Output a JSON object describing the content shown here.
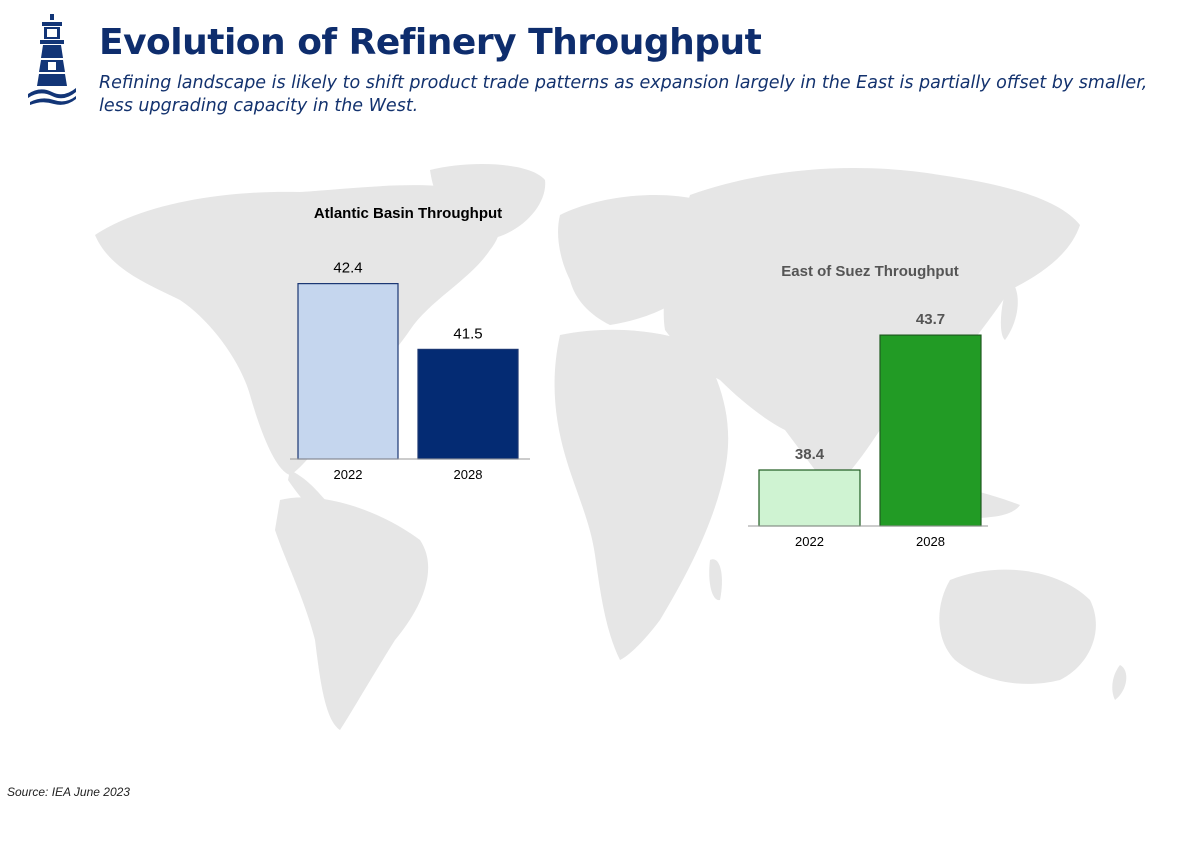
{
  "header": {
    "title": "Evolution of Refinery Throughput",
    "subtitle": "Refining landscape is likely to shift product trade patterns as expansion largely in the East is partially offset by smaller, less upgrading capacity in the West.",
    "logo_icon": "lighthouse-icon"
  },
  "footer": {
    "source": "Source: IEA June 2023"
  },
  "colors": {
    "title": "#0e2d6d",
    "map_land": "#e6e6e6",
    "atlantic_2022": "#c5d6ee",
    "atlantic_2028": "#042b73",
    "suez_2022": "#cff3d2",
    "suez_2028": "#229b25",
    "bar_outline_atlantic": "#1a3672",
    "bar_outline_suez": "#1e5a20",
    "suez_text": "#555555"
  },
  "chart_data": [
    {
      "type": "bar",
      "title": "Atlantic Basin Throughput",
      "categories": [
        "2022",
        "2028"
      ],
      "values": [
        42.4,
        41.5
      ],
      "value_labels": [
        "42.4",
        "41.5"
      ],
      "ylim": [
        40,
        42.6
      ],
      "colors": [
        "#c5d6ee",
        "#042b73"
      ],
      "xlabel": "",
      "ylabel": "",
      "grid": false,
      "legend": false
    },
    {
      "type": "bar",
      "title": "East of Suez Throughput",
      "categories": [
        "2022",
        "2028"
      ],
      "values": [
        38.4,
        43.7
      ],
      "value_labels": [
        "38.4",
        "43.7"
      ],
      "ylim": [
        36.2,
        43.9
      ],
      "colors": [
        "#cff3d2",
        "#229b25"
      ],
      "xlabel": "",
      "ylabel": "",
      "grid": false,
      "legend": false
    }
  ]
}
